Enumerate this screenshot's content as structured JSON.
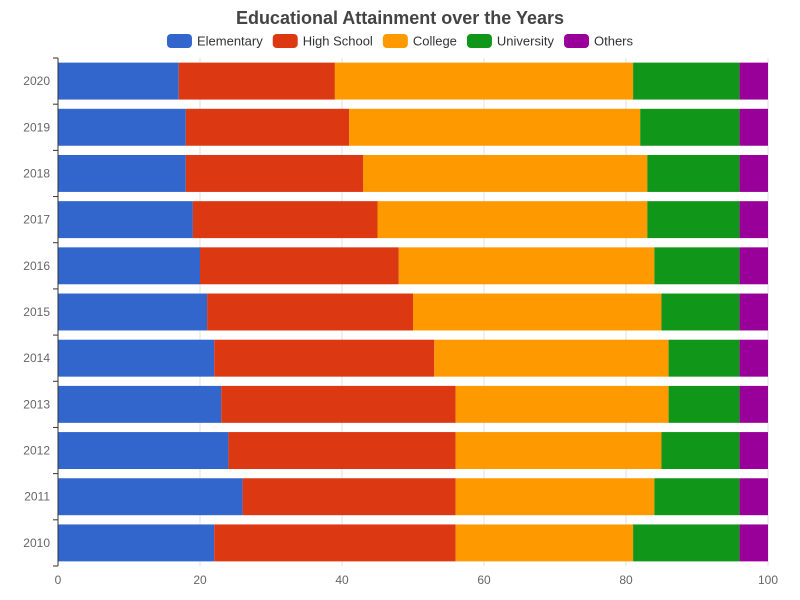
{
  "chart_data": {
    "type": "bar",
    "orientation": "horizontal",
    "stacked": true,
    "title": "Educational Attainment over the Years",
    "categories": [
      "2010",
      "2011",
      "2012",
      "2013",
      "2014",
      "2015",
      "2016",
      "2017",
      "2018",
      "2019",
      "2020"
    ],
    "series": [
      {
        "name": "Elementary",
        "color": "#3366cc",
        "values": [
          22,
          26,
          24,
          23,
          22,
          21,
          20,
          19,
          18,
          18,
          17
        ]
      },
      {
        "name": "High School",
        "color": "#dc3912",
        "values": [
          34,
          30,
          32,
          33,
          31,
          29,
          28,
          26,
          25,
          23,
          22
        ]
      },
      {
        "name": "College",
        "color": "#ff9900",
        "values": [
          25,
          28,
          29,
          30,
          33,
          35,
          36,
          38,
          40,
          41,
          42
        ]
      },
      {
        "name": "University",
        "color": "#109618",
        "values": [
          15,
          12,
          11,
          10,
          10,
          11,
          12,
          13,
          13,
          14,
          15
        ]
      },
      {
        "name": "Others",
        "color": "#990099",
        "values": [
          4,
          4,
          4,
          4,
          4,
          4,
          4,
          4,
          4,
          4,
          4
        ]
      }
    ],
    "xlim": [
      0,
      100
    ],
    "x_ticks": [
      "0",
      "20",
      "40",
      "60",
      "80",
      "100"
    ],
    "xlabel": "",
    "ylabel": "",
    "grid": true,
    "legend_position": "top"
  }
}
